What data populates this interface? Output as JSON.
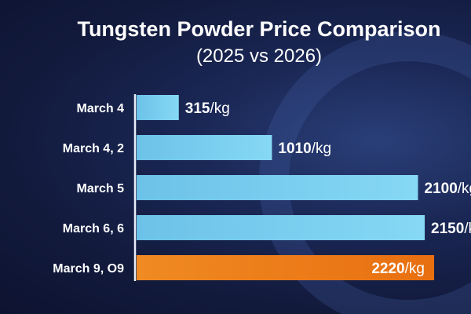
{
  "chart_data": {
    "type": "bar",
    "orientation": "horizontal",
    "title": "Tungsten Powder Price Comparison",
    "subtitle": "(2025 vs 2026)",
    "categories": [
      "March 4",
      "March 4, 2",
      "March 5",
      "March 6, 6",
      "March 9, O9"
    ],
    "values": [
      315,
      1010,
      2100,
      2150,
      2220
    ],
    "unit_suffix": "/kg",
    "colors": [
      "#7dd3f0",
      "#7dd3f0",
      "#7dd3f0",
      "#7dd3f0",
      "#f07d1a"
    ],
    "highlight_index": 4,
    "grid": false
  }
}
